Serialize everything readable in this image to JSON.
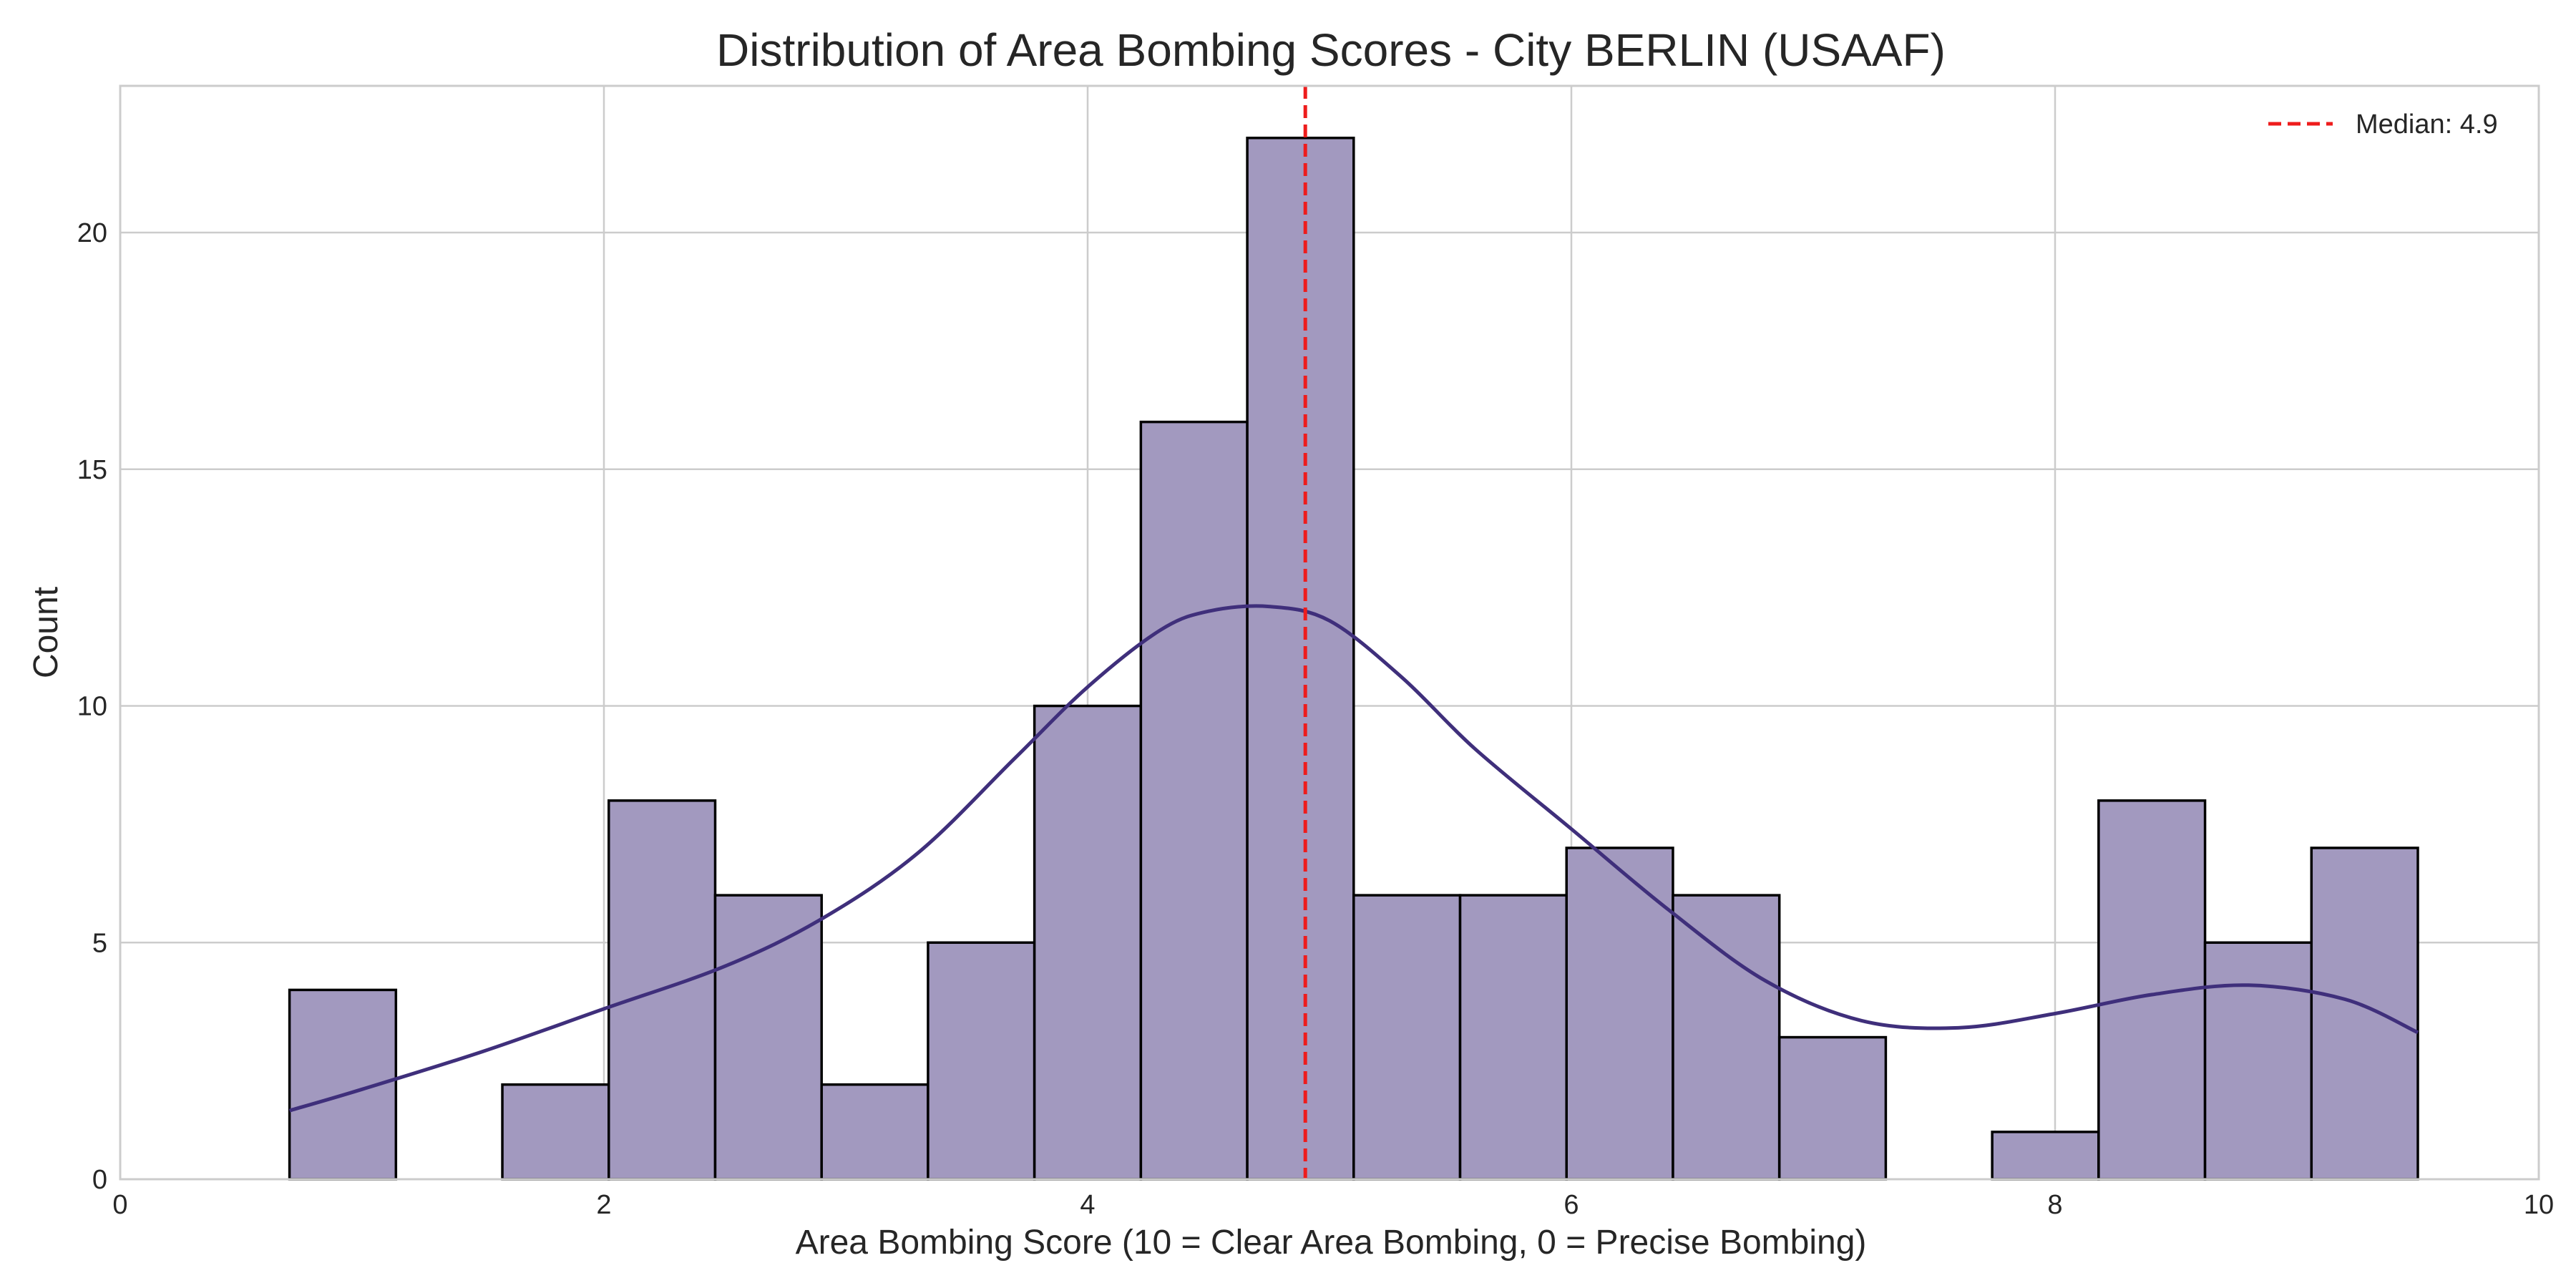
{
  "chart_data": {
    "type": "histogram",
    "title": "Distribution of Area Bombing Scores - City BERLIN (USAAF)",
    "xlabel": "Area Bombing Score (10 = Clear Area Bombing, 0 = Precise Bombing)",
    "ylabel": "Count",
    "xlim": [
      0,
      10
    ],
    "ylim": [
      0,
      23.1
    ],
    "x_ticks": [
      0,
      2,
      4,
      6,
      8,
      10
    ],
    "y_ticks": [
      0,
      5,
      10,
      15,
      20
    ],
    "grid": true,
    "legend_position": "top-right",
    "bins": [
      {
        "x0": 0.7,
        "x1": 1.14,
        "count": 4
      },
      {
        "x0": 1.14,
        "x1": 1.58,
        "count": 0
      },
      {
        "x0": 1.58,
        "x1": 2.02,
        "count": 2
      },
      {
        "x0": 2.02,
        "x1": 2.46,
        "count": 8
      },
      {
        "x0": 2.46,
        "x1": 2.9,
        "count": 6
      },
      {
        "x0": 2.9,
        "x1": 3.34,
        "count": 2
      },
      {
        "x0": 3.34,
        "x1": 3.78,
        "count": 5
      },
      {
        "x0": 3.78,
        "x1": 4.22,
        "count": 10
      },
      {
        "x0": 4.22,
        "x1": 4.66,
        "count": 16
      },
      {
        "x0": 4.66,
        "x1": 5.1,
        "count": 22
      },
      {
        "x0": 5.1,
        "x1": 5.54,
        "count": 6
      },
      {
        "x0": 5.54,
        "x1": 5.98,
        "count": 6
      },
      {
        "x0": 5.98,
        "x1": 6.42,
        "count": 7
      },
      {
        "x0": 6.42,
        "x1": 6.86,
        "count": 6
      },
      {
        "x0": 6.86,
        "x1": 7.3,
        "count": 3
      },
      {
        "x0": 7.3,
        "x1": 7.74,
        "count": 0
      },
      {
        "x0": 7.74,
        "x1": 8.18,
        "count": 1
      },
      {
        "x0": 8.18,
        "x1": 8.62,
        "count": 8
      },
      {
        "x0": 8.62,
        "x1": 9.06,
        "count": 5
      },
      {
        "x0": 9.06,
        "x1": 9.5,
        "count": 7
      }
    ],
    "kde": {
      "x": [
        0.7,
        1.0,
        1.5,
        2.0,
        2.5,
        2.9,
        3.3,
        3.7,
        4.0,
        4.3,
        4.5,
        4.75,
        5.0,
        5.3,
        5.6,
        6.0,
        6.4,
        6.8,
        7.2,
        7.6,
        8.0,
        8.4,
        8.8,
        9.2,
        9.5
      ],
      "y": [
        1.45,
        1.9,
        2.7,
        3.6,
        4.5,
        5.5,
        6.9,
        8.9,
        10.4,
        11.6,
        12.0,
        12.1,
        11.8,
        10.6,
        9.1,
        7.4,
        5.7,
        4.2,
        3.35,
        3.2,
        3.5,
        3.9,
        4.1,
        3.8,
        3.1
      ]
    },
    "median": {
      "value": 4.9,
      "label": "Median: 4.9"
    },
    "colors": {
      "bar_fill": "#a299bf",
      "bar_edge": "#000000",
      "kde_line": "#3f2f7b",
      "median_line": "#ee1c1c",
      "grid": "#cccccc",
      "axes_edge": "#cccccc"
    }
  }
}
